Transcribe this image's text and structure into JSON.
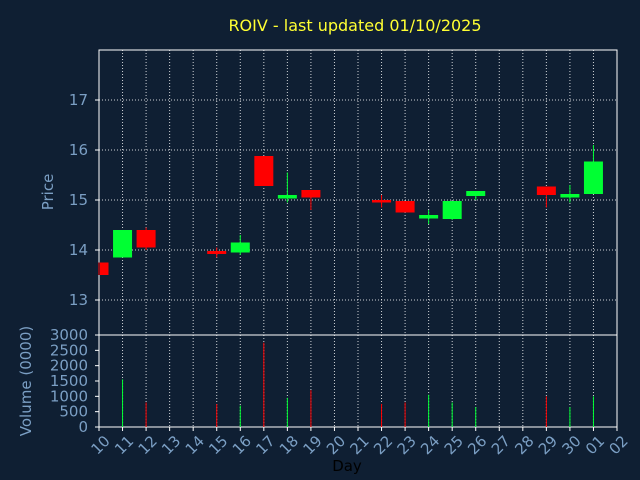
{
  "chart_data": {
    "type": "candlestick",
    "title": "ROIV - last updated 01/10/2025",
    "xlabel": "Day",
    "price_ylabel": "Price",
    "volume_ylabel": "Volume (0000)",
    "price_ylim": [
      12.3,
      18.0
    ],
    "price_ticks": [
      "13",
      "14",
      "15",
      "16",
      "17"
    ],
    "volume_ylim": [
      0,
      3000
    ],
    "volume_ticks": [
      "0",
      "500",
      "1000",
      "1500",
      "2000",
      "2500",
      "3000"
    ],
    "grid": true,
    "colors": {
      "up": "#00ff33",
      "down": "#ff0000",
      "grid": "#ffffff",
      "axis": "#ffffff",
      "tick": "#7b9fc4",
      "title": "#ffff33",
      "background": "#0f1f33",
      "plot": "#0f1f33"
    },
    "x_labels": [
      "10",
      "11",
      "12",
      "13",
      "14",
      "15",
      "16",
      "17",
      "18",
      "19",
      "20",
      "21",
      "22",
      "23",
      "24",
      "25",
      "26",
      "27",
      "28",
      "29",
      "30",
      "01",
      "02"
    ],
    "candles": [
      {
        "x": 0,
        "open": 13.75,
        "close": 13.5,
        "high": 13.75,
        "low": 13.5,
        "volume": 0
      },
      {
        "x": 1,
        "open": 13.85,
        "close": 14.4,
        "high": 14.4,
        "low": 13.85,
        "volume": 1550
      },
      {
        "x": 2,
        "open": 14.4,
        "close": 14.05,
        "high": 14.45,
        "low": 14.0,
        "volume": 800
      },
      {
        "x": 5,
        "open": 13.98,
        "close": 13.92,
        "high": 14.05,
        "low": 13.85,
        "volume": 750
      },
      {
        "x": 6,
        "open": 13.95,
        "close": 14.15,
        "high": 14.3,
        "low": 13.9,
        "volume": 700
      },
      {
        "x": 7,
        "open": 15.88,
        "close": 15.28,
        "high": 15.88,
        "low": 15.28,
        "volume": 2750
      },
      {
        "x": 8,
        "open": 15.03,
        "close": 15.1,
        "high": 15.55,
        "low": 14.95,
        "volume": 950
      },
      {
        "x": 9,
        "open": 15.2,
        "close": 15.05,
        "high": 15.2,
        "low": 14.8,
        "volume": 1200
      },
      {
        "x": 12,
        "open": 15.0,
        "close": 14.95,
        "high": 15.1,
        "low": 14.85,
        "volume": 750
      },
      {
        "x": 13,
        "open": 14.98,
        "close": 14.75,
        "high": 14.98,
        "low": 14.75,
        "volume": 800
      },
      {
        "x": 14,
        "open": 14.63,
        "close": 14.7,
        "high": 14.8,
        "low": 14.52,
        "volume": 1050
      },
      {
        "x": 15,
        "open": 14.62,
        "close": 14.98,
        "high": 14.98,
        "low": 14.6,
        "volume": 800
      },
      {
        "x": 16,
        "open": 15.08,
        "close": 15.18,
        "high": 15.18,
        "low": 15.0,
        "volume": 650
      },
      {
        "x": 19,
        "open": 15.27,
        "close": 15.1,
        "high": 15.27,
        "low": 14.85,
        "volume": 1000
      },
      {
        "x": 20,
        "open": 15.05,
        "close": 15.12,
        "high": 15.3,
        "low": 14.95,
        "volume": 650
      },
      {
        "x": 21,
        "open": 15.12,
        "close": 15.77,
        "high": 16.1,
        "low": 15.12,
        "volume": 1000
      }
    ]
  }
}
